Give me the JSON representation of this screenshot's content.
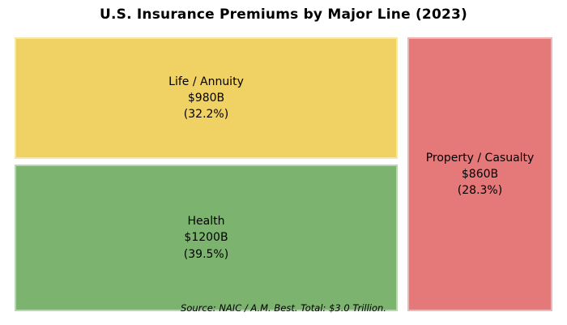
{
  "title": "U.S. Insurance Premiums by Major Line (2023)",
  "source_note": "Source: NAIC / A.M. Best. Total: $3.0 Trillion.",
  "colors": {
    "background": "#ffffff",
    "text": "#000000",
    "life_annuity": "#F0D164",
    "health": "#7CB46F",
    "property_casualty": "#E57879"
  },
  "chart_data": {
    "type": "treemap",
    "title": "U.S. Insurance Premiums by Major Line (2023)",
    "total_label": "$3.0 Trillion",
    "total_billions": 3040,
    "legend": "none",
    "axes": "none",
    "segments": [
      {
        "label": "Life / Annuity",
        "value_label": "$980B",
        "value_billions": 980,
        "pct_label": "(32.2%)",
        "pct": 32.2,
        "color": "#F0D164",
        "position": "top-left"
      },
      {
        "label": "Health",
        "value_label": "$1200B",
        "value_billions": 1200,
        "pct_label": "(39.5%)",
        "pct": 39.5,
        "color": "#7CB46F",
        "position": "bottom-left"
      },
      {
        "label": "Property / Casualty",
        "value_label": "$860B",
        "value_billions": 860,
        "pct_label": "(28.3%)",
        "pct": 28.3,
        "color": "#E57879",
        "position": "right"
      }
    ],
    "annotation": "Source: NAIC / A.M. Best. Total: $3.0 Trillion."
  }
}
